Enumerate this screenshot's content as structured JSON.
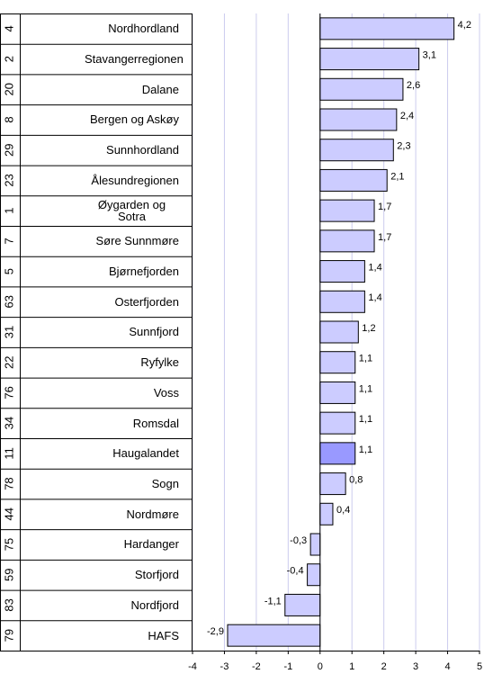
{
  "chart_data": {
    "type": "bar",
    "orientation": "horizontal",
    "codes": [
      4,
      2,
      20,
      8,
      29,
      23,
      1,
      7,
      5,
      63,
      31,
      22,
      76,
      34,
      11,
      78,
      44,
      75,
      59,
      83,
      79
    ],
    "categories": [
      "Nordhordland",
      "Stavangerregionen",
      "Dalane",
      "Bergen og Askøy",
      "Sunnhordland",
      "Ålesundregionen",
      "Øygarden og Sotra",
      "Søre Sunnmøre",
      "Bjørnefjorden",
      "Osterfjorden",
      "Sunnfjord",
      "Ryfylke",
      "Voss",
      "Romsdal",
      "Haugalandet",
      "Sogn",
      "Nordmøre",
      "Hardanger",
      "Storfjord",
      "Nordfjord",
      "HAFS"
    ],
    "values": [
      4.2,
      3.1,
      2.6,
      2.4,
      2.3,
      2.1,
      1.7,
      1.7,
      1.4,
      1.4,
      1.2,
      1.1,
      1.1,
      1.1,
      1.1,
      0.8,
      0.4,
      -0.3,
      -0.4,
      -1.1,
      -2.9
    ],
    "value_labels": [
      "4,2",
      "3,1",
      "2,6",
      "2,4",
      "2,3",
      "2,1",
      "1,7",
      "1,7",
      "1,4",
      "1,4",
      "1,2",
      "1,1",
      "1,1",
      "1,1",
      "1,1",
      "0,8",
      "0,4",
      "-0,3",
      "-0,4",
      "-1,1",
      "-2,9"
    ],
    "colors": [
      "#ccccff",
      "#ccccff",
      "#ccccff",
      "#ccccff",
      "#ccccff",
      "#ccccff",
      "#ccccff",
      "#ccccff",
      "#ccccff",
      "#ccccff",
      "#ccccff",
      "#ccccff",
      "#ccccff",
      "#ccccff",
      "#9999ff",
      "#ccccff",
      "#ccccff",
      "#ccccff",
      "#ccccff",
      "#ccccff",
      "#ccccff"
    ],
    "xlim": [
      -4,
      5
    ],
    "xticks": [
      -4,
      -3,
      -2,
      -1,
      0,
      1,
      2,
      3,
      4,
      5
    ],
    "grid": true
  }
}
